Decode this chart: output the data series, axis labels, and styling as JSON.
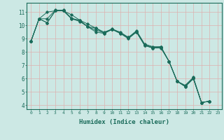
{
  "xlabel": "Humidex (Indice chaleur)",
  "ylabel": "",
  "background_color": "#cce8e4",
  "grid_color": "#ddb0b0",
  "line_color": "#1a6b5a",
  "xlim": [
    -0.5,
    23.5
  ],
  "ylim": [
    3.7,
    11.7
  ],
  "yticks": [
    4,
    5,
    6,
    7,
    8,
    9,
    10,
    11
  ],
  "xticks": [
    0,
    1,
    2,
    3,
    4,
    5,
    6,
    7,
    8,
    9,
    10,
    11,
    12,
    13,
    14,
    15,
    16,
    17,
    18,
    19,
    20,
    21,
    22,
    23
  ],
  "series": [
    [
      8.8,
      10.5,
      11.0,
      11.1,
      11.1,
      10.8,
      10.4,
      10.1,
      9.8,
      9.5,
      9.7,
      9.5,
      9.1,
      9.6,
      8.6,
      8.4,
      8.4,
      7.3,
      5.8,
      5.5,
      6.1,
      4.2,
      4.3,
      null
    ],
    [
      8.8,
      10.5,
      10.2,
      11.1,
      11.1,
      10.5,
      10.3,
      9.9,
      9.8,
      9.4,
      9.7,
      9.4,
      9.0,
      9.5,
      8.5,
      8.3,
      8.3,
      7.3,
      5.8,
      5.4,
      6.0,
      4.2,
      4.3,
      null
    ],
    [
      8.8,
      10.5,
      10.2,
      11.1,
      11.1,
      10.5,
      10.4,
      9.9,
      9.5,
      9.4,
      9.7,
      9.4,
      9.1,
      9.5,
      8.5,
      8.3,
      8.4,
      7.3,
      5.8,
      5.4,
      6.0,
      4.2,
      4.3,
      null
    ],
    [
      8.8,
      10.5,
      10.5,
      11.15,
      11.15,
      10.55,
      10.35,
      9.9,
      9.65,
      9.45,
      9.75,
      9.45,
      9.05,
      9.55,
      8.55,
      8.35,
      8.35,
      7.3,
      5.8,
      5.45,
      6.05,
      4.2,
      4.3,
      null
    ]
  ]
}
